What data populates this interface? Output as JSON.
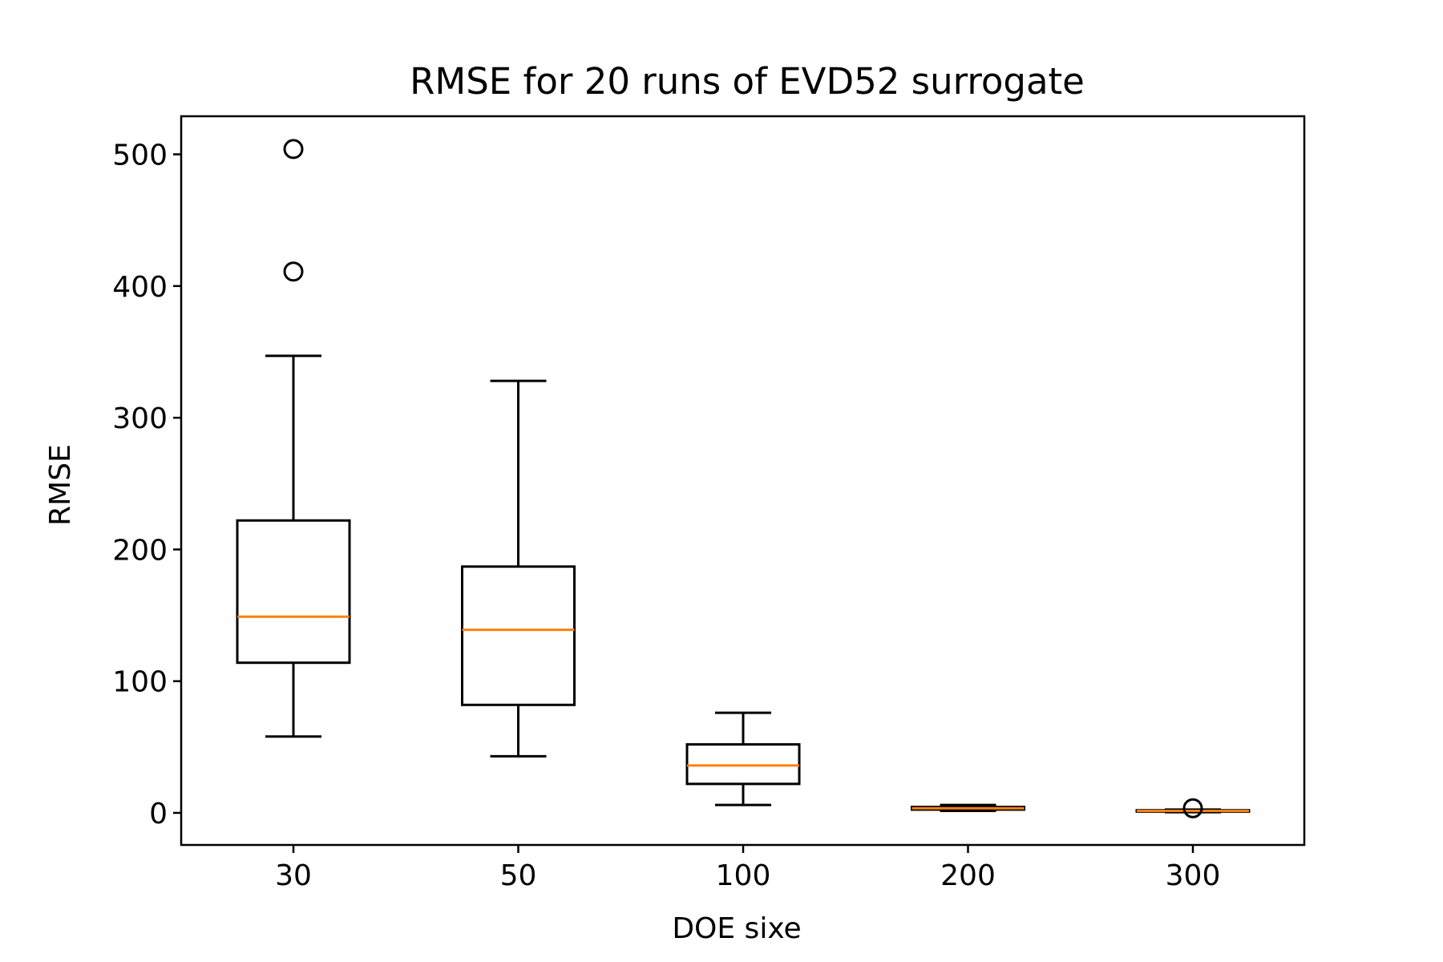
{
  "chart_data": {
    "type": "box",
    "title": "RMSE for 20 runs of EVD52 surrogate",
    "xlabel": "DOE sixe",
    "ylabel": "RMSE",
    "categories": [
      "30",
      "50",
      "100",
      "200",
      "300"
    ],
    "ylim": [
      -24,
      530
    ],
    "yticks": [
      0,
      100,
      200,
      300,
      400,
      500
    ],
    "grid": false,
    "legend": "none",
    "colors": {
      "box": "#000000",
      "median": "#ff7f0e",
      "outlier": "#000000"
    },
    "boxes": [
      {
        "category": "30",
        "whisker_low": 58,
        "q1": 114,
        "median": 149,
        "q3": 222,
        "whisker_high": 347,
        "outliers": [
          411,
          504
        ]
      },
      {
        "category": "50",
        "whisker_low": 43,
        "q1": 82,
        "median": 139,
        "q3": 187,
        "whisker_high": 328,
        "outliers": []
      },
      {
        "category": "100",
        "whisker_low": 6,
        "q1": 22,
        "median": 36,
        "q3": 52,
        "whisker_high": 76,
        "outliers": []
      },
      {
        "category": "200",
        "whisker_low": 1.5,
        "q1": 2.5,
        "median": 3.5,
        "q3": 4.5,
        "whisker_high": 6,
        "outliers": []
      },
      {
        "category": "300",
        "whisker_low": 0.5,
        "q1": 1,
        "median": 1.5,
        "q3": 2,
        "whisker_high": 2.5,
        "outliers": [
          3.5
        ]
      }
    ]
  }
}
